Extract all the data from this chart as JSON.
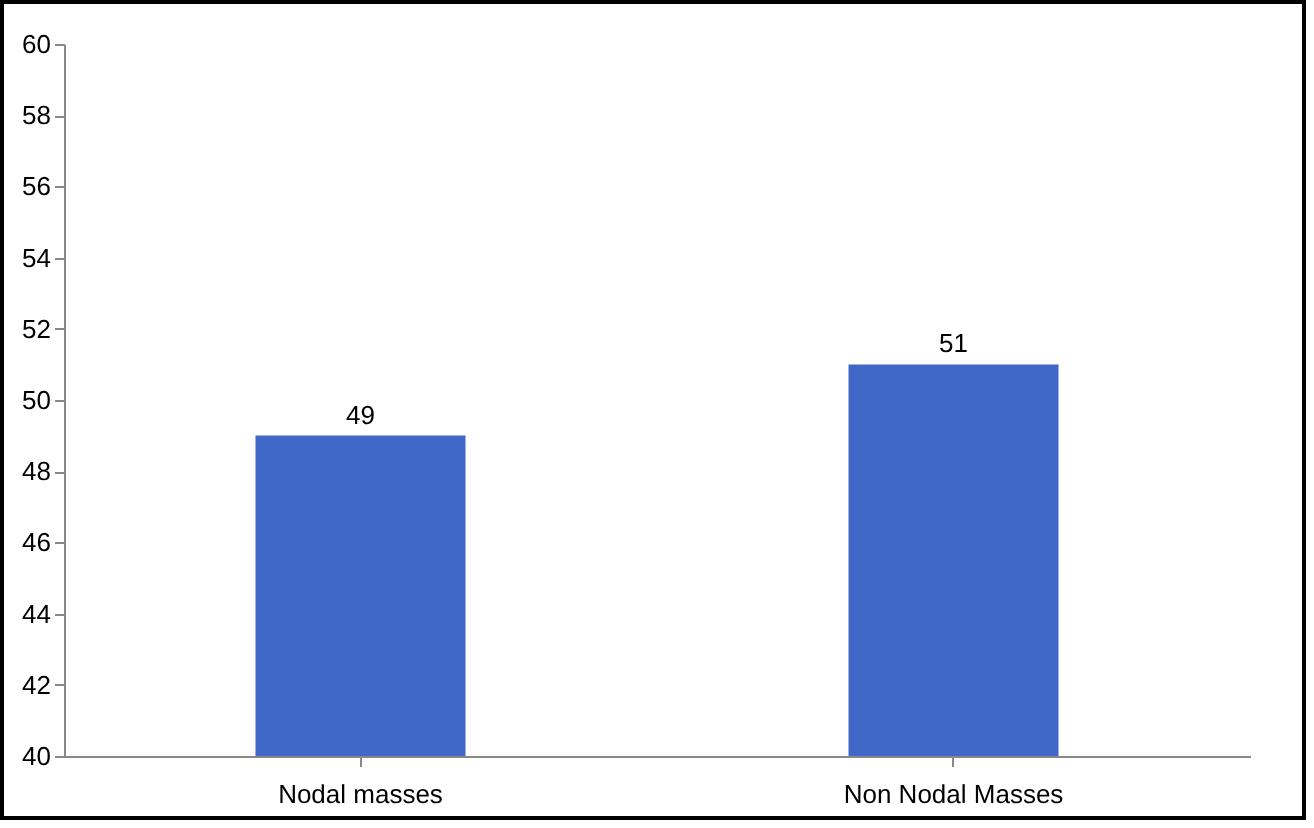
{
  "chart_data": {
    "type": "bar",
    "categories": [
      "Nodal masses",
      "Non Nodal Masses"
    ],
    "values": [
      49,
      51
    ],
    "color": "#3f68c8",
    "ylim": [
      40,
      60
    ],
    "yticks": [
      40,
      42,
      44,
      46,
      48,
      50,
      52,
      54,
      56,
      58,
      60
    ],
    "data_labels": true,
    "grid": false
  }
}
